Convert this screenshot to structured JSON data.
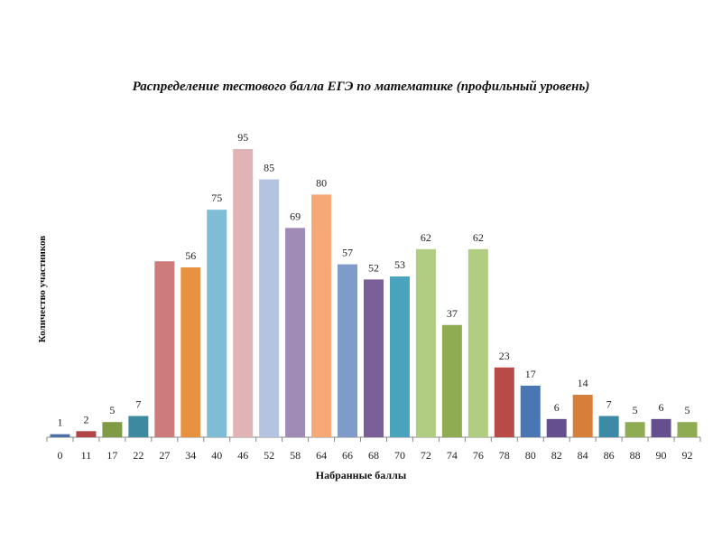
{
  "chart_data": {
    "type": "bar",
    "title": "Распределение тестового балла ЕГЭ по математике (профильный уровень)",
    "xlabel": "Набранные баллы",
    "ylabel": "Количество участников",
    "categories": [
      "0",
      "11",
      "17",
      "22",
      "27",
      "34",
      "40",
      "46",
      "52",
      "58",
      "64",
      "66",
      "68",
      "70",
      "72",
      "74",
      "76",
      "78",
      "80",
      "82",
      "84",
      "86",
      "88",
      "90",
      "92"
    ],
    "values": [
      1,
      2,
      5,
      7,
      58,
      56,
      75,
      95,
      85,
      69,
      80,
      57,
      52,
      53,
      62,
      37,
      62,
      23,
      17,
      6,
      14,
      7,
      5,
      6,
      5
    ],
    "data_labels": [
      "1",
      "2",
      "5",
      "7",
      "",
      "56",
      "75",
      "95",
      "85",
      "69",
      "80",
      "57",
      "52",
      "53",
      "62",
      "37",
      "62",
      "23",
      "17",
      "6",
      "14",
      "7",
      "5",
      "6",
      "5"
    ],
    "colors": [
      "#4f6fa8",
      "#b04545",
      "#7f9b45",
      "#3d8aa0",
      "#cd7b7b",
      "#e8913f",
      "#7fbdd6",
      "#e0b4b4",
      "#b4c3df",
      "#a08bb7",
      "#f6a977",
      "#7f9bc9",
      "#7a5f99",
      "#4aa3bd",
      "#b0cd82",
      "#8fac53",
      "#b0cd82",
      "#b84a48",
      "#4a76b3",
      "#654f8f",
      "#d57f3b",
      "#3c8aa5",
      "#8fac53",
      "#654f8f",
      "#8fac53"
    ],
    "ylim": [
      0,
      100
    ],
    "grid": false,
    "legend": "none"
  }
}
